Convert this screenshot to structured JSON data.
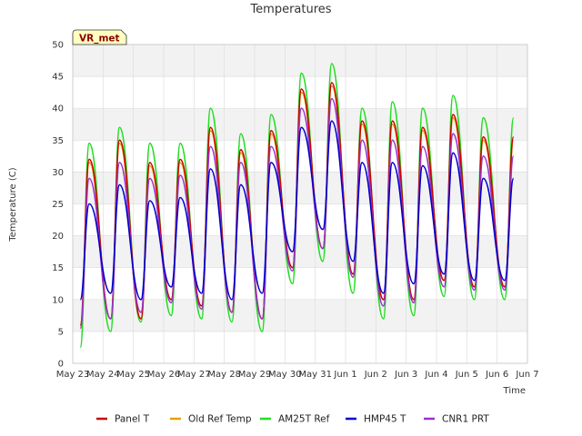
{
  "chart_data": {
    "type": "line",
    "title": "Temperatures",
    "xlabel": "Time",
    "ylabel": "Temperature (C)",
    "badge": "VR_met",
    "ylim": [
      0,
      50
    ],
    "yticks": [
      0,
      5,
      10,
      15,
      20,
      25,
      30,
      35,
      40,
      45,
      50
    ],
    "xlim": [
      "2023-05-23",
      "2023-06-07"
    ],
    "xticks": [
      "May 23",
      "May 24",
      "May 25",
      "May 26",
      "May 27",
      "May 28",
      "May 29",
      "May 30",
      "May 31",
      "Jun 1",
      "Jun 2",
      "Jun 3",
      "Jun 4",
      "Jun 5",
      "Jun 6",
      "Jun 7"
    ],
    "grid": true,
    "band_colors": [
      "#f2f2f2",
      "#ffffff"
    ],
    "legend_position": "bottom",
    "colors": {
      "Panel T": "#cc0000",
      "Old Ref Temp": "#e6a000",
      "AM25T Ref": "#22dd22",
      "HMP45 T": "#0000cc",
      "CNR1 PRT": "#9932cc"
    },
    "series": [
      {
        "name": "Panel T",
        "x": [
          "May 23 06:00",
          "May 23 13:00",
          "May 24 06:00",
          "May 24 13:00",
          "May 25 06:00",
          "May 25 13:00",
          "May 26 06:00",
          "May 26 13:00",
          "May 27 06:00",
          "May 27 13:00",
          "May 28 06:00",
          "May 28 13:00",
          "May 29 06:00",
          "May 29 13:00",
          "May 30 06:00",
          "May 30 13:00",
          "May 31 06:00",
          "May 31 13:00",
          "Jun 1 06:00",
          "Jun 1 13:00",
          "Jun 2 06:00",
          "Jun 2 13:00",
          "Jun 3 06:00",
          "Jun 3 13:00",
          "Jun 4 06:00",
          "Jun 4 13:00",
          "Jun 5 06:00",
          "Jun 5 13:00",
          "Jun 6 06:00",
          "Jun 6 13:00"
        ],
        "values": [
          6,
          32,
          7,
          35,
          7,
          31.5,
          10,
          32,
          9,
          37,
          8,
          33.5,
          7,
          36.5,
          15,
          43,
          18,
          44,
          14,
          38,
          10,
          38,
          10,
          37,
          13,
          39,
          12,
          35.5,
          12,
          35.5
        ]
      },
      {
        "name": "Old Ref Temp",
        "x": [
          "May 23 06:00",
          "May 23 13:00",
          "May 24 06:00",
          "May 24 13:00",
          "May 25 06:00",
          "May 25 13:00",
          "May 26 06:00",
          "May 26 13:00",
          "May 27 06:00",
          "May 27 13:00",
          "May 28 06:00",
          "May 28 13:00",
          "May 29 06:00",
          "May 29 13:00",
          "May 30 06:00",
          "May 30 13:00",
          "May 31 06:00",
          "May 31 13:00",
          "Jun 1 06:00",
          "Jun 1 13:00",
          "Jun 2 06:00",
          "Jun 2 13:00",
          "Jun 3 06:00",
          "Jun 3 13:00",
          "Jun 4 06:00",
          "Jun 4 13:00",
          "Jun 5 06:00",
          "Jun 5 13:00",
          "Jun 6 06:00",
          "Jun 6 13:00"
        ],
        "values": [
          6,
          31.5,
          7,
          34.5,
          7,
          31,
          10,
          31.5,
          9,
          36.5,
          8,
          33,
          7,
          36,
          15,
          42.5,
          18,
          43.5,
          14,
          37.5,
          10,
          37.5,
          10,
          36.5,
          13,
          38.5,
          12,
          35,
          12,
          35
        ]
      },
      {
        "name": "AM25T Ref",
        "x": [
          "May 23 06:00",
          "May 23 13:00",
          "May 24 06:00",
          "May 24 13:00",
          "May 25 06:00",
          "May 25 13:00",
          "May 26 06:00",
          "May 26 13:00",
          "May 27 06:00",
          "May 27 13:00",
          "May 28 06:00",
          "May 28 13:00",
          "May 29 06:00",
          "May 29 13:00",
          "May 30 06:00",
          "May 30 13:00",
          "May 31 06:00",
          "May 31 13:00",
          "Jun 1 06:00",
          "Jun 1 13:00",
          "Jun 2 06:00",
          "Jun 2 13:00",
          "Jun 3 06:00",
          "Jun 3 13:00",
          "Jun 4 06:00",
          "Jun 4 13:00",
          "Jun 5 06:00",
          "Jun 5 13:00",
          "Jun 6 06:00",
          "Jun 6 13:00"
        ],
        "values": [
          2.5,
          34.5,
          5,
          37,
          6.5,
          34.5,
          7.5,
          34.5,
          7,
          40,
          6.5,
          36,
          5,
          39,
          12.5,
          45.5,
          16,
          47,
          11,
          40,
          7,
          41,
          7.5,
          40,
          10.5,
          42,
          10,
          38.5,
          10,
          38.5
        ]
      },
      {
        "name": "HMP45 T",
        "x": [
          "May 23 06:00",
          "May 23 13:00",
          "May 24 06:00",
          "May 24 13:00",
          "May 25 06:00",
          "May 25 13:00",
          "May 26 06:00",
          "May 26 13:00",
          "May 27 06:00",
          "May 27 13:00",
          "May 28 06:00",
          "May 28 13:00",
          "May 29 06:00",
          "May 29 13:00",
          "May 30 06:00",
          "May 30 13:00",
          "May 31 06:00",
          "May 31 13:00",
          "Jun 1 06:00",
          "Jun 1 13:00",
          "Jun 2 06:00",
          "Jun 2 13:00",
          "Jun 3 06:00",
          "Jun 3 13:00",
          "Jun 4 06:00",
          "Jun 4 13:00",
          "Jun 5 06:00",
          "Jun 5 13:00",
          "Jun 6 06:00",
          "Jun 6 13:00"
        ],
        "values": [
          10,
          25,
          11,
          28,
          10,
          25.5,
          12,
          26,
          11,
          30.5,
          10,
          28,
          11,
          31.5,
          17.5,
          37,
          21,
          38,
          16,
          31.5,
          11,
          31.5,
          12.5,
          31,
          14,
          33,
          13,
          29,
          13,
          29
        ]
      },
      {
        "name": "CNR1 PRT",
        "x": [
          "May 23 06:00",
          "May 23 13:00",
          "May 24 06:00",
          "May 24 13:00",
          "May 25 06:00",
          "May 25 13:00",
          "May 26 06:00",
          "May 26 13:00",
          "May 27 06:00",
          "May 27 13:00",
          "May 28 06:00",
          "May 28 13:00",
          "May 29 06:00",
          "May 29 13:00",
          "May 30 06:00",
          "May 30 13:00",
          "May 31 06:00",
          "May 31 13:00",
          "Jun 1 06:00",
          "Jun 1 13:00",
          "Jun 2 06:00",
          "Jun 2 13:00",
          "Jun 3 06:00",
          "Jun 3 13:00",
          "Jun 4 06:00",
          "Jun 4 13:00",
          "Jun 5 06:00",
          "Jun 5 13:00",
          "Jun 6 06:00",
          "Jun 6 13:00"
        ],
        "values": [
          5.5,
          29,
          7,
          31.5,
          8,
          29,
          9.5,
          29.5,
          8.5,
          34,
          8,
          31.5,
          7,
          34,
          14.5,
          40,
          18,
          41.5,
          13.5,
          35,
          9,
          35,
          9.5,
          34,
          12,
          36,
          11.5,
          32.5,
          11.5,
          32.5
        ]
      }
    ]
  }
}
